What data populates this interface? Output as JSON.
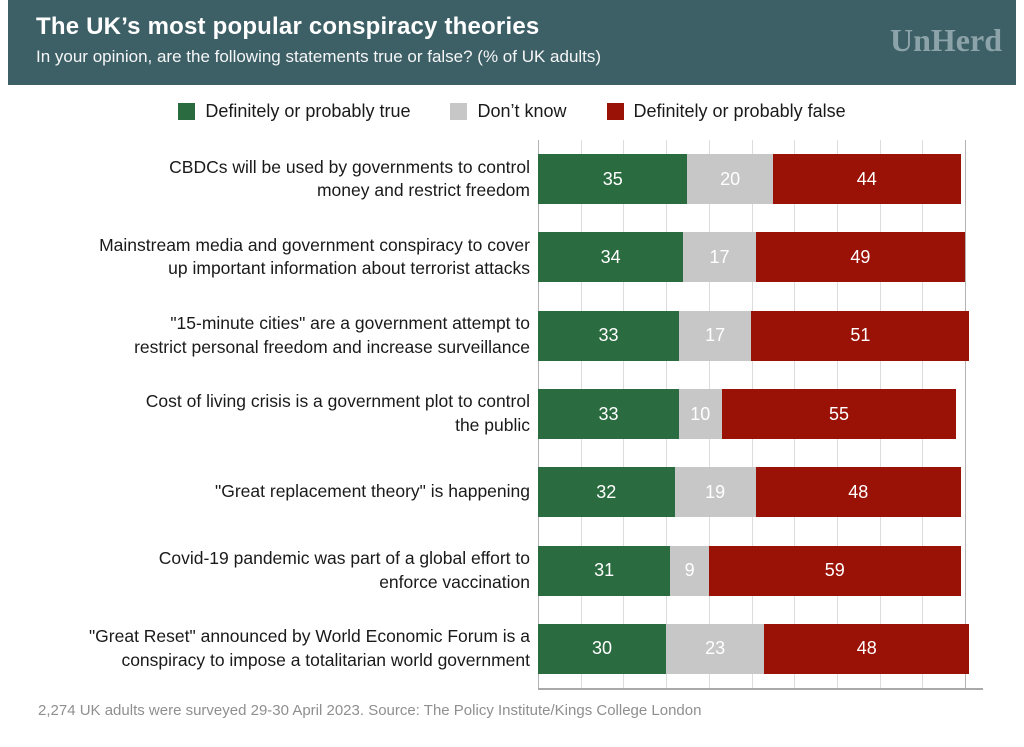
{
  "header": {
    "title": "The UK’s most popular conspiracy theories",
    "subtitle": "In your opinion, are the following statements true or false? (% of UK adults)",
    "logo": "UnHerd",
    "background_color": "#3d5f66",
    "logo_color": "#8ca3a9"
  },
  "legend": [
    {
      "label": "Definitely or probably true",
      "color": "#2a6b3f"
    },
    {
      "label": "Don’t know",
      "color": "#c7c7c7"
    },
    {
      "label": "Definitely or probably false",
      "color": "#9a1106"
    }
  ],
  "chart_data": {
    "type": "bar",
    "orientation": "horizontal",
    "stacked": true,
    "title": "The UK’s most popular conspiracy theories",
    "subtitle": "In your opinion, are the following statements true or false? (% of UK adults)",
    "xlabel": "",
    "ylabel": "",
    "xlim": [
      0,
      104
    ],
    "grid": "vertical gridlines every 10 from 0 to 100",
    "legend_position": "top center",
    "value_labels": "white, centered inside each segment",
    "categories": [
      "CBDCs will be used by governments to control\nmoney and restrict freedom",
      "Mainstream media and government conspiracy to cover\nup important information about terrorist attacks",
      "\"15-minute cities\" are a government attempt to\nrestrict personal freedom and increase surveillance",
      "Cost of living crisis is a government plot to control\nthe public",
      "\"Great replacement theory\" is happening",
      "Covid-19 pandemic was part of a global effort to\nenforce vaccination",
      "\"Great Reset\" announced by World Economic Forum is a\nconspiracy to impose a totalitarian world government"
    ],
    "series": [
      {
        "name": "Definitely or probably true",
        "color": "#2a6b3f",
        "values": [
          35,
          34,
          33,
          33,
          32,
          31,
          30
        ]
      },
      {
        "name": "Don’t know",
        "color": "#c7c7c7",
        "values": [
          20,
          17,
          17,
          10,
          19,
          9,
          23
        ]
      },
      {
        "name": "Definitely or probably false",
        "color": "#9a1106",
        "values": [
          44,
          49,
          51,
          55,
          48,
          59,
          48
        ]
      }
    ]
  },
  "footer": {
    "source": "2,274 UK adults were surveyed 29-30 April 2023. Source: The Policy Institute/Kings College London"
  }
}
